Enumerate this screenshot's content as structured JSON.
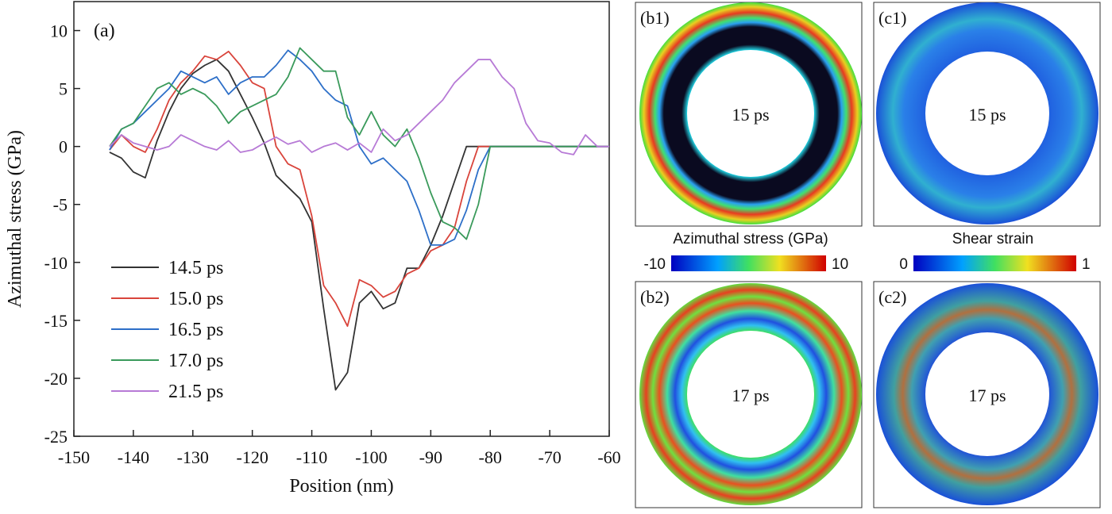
{
  "chart_data": {
    "type": "line",
    "annotation": "(a)",
    "x_label": "Position (nm)",
    "y_label": "Azimuthal stress (GPa)",
    "xlim": [
      -150,
      -60
    ],
    "xticks": [
      -150,
      -140,
      -130,
      -120,
      -110,
      -100,
      -90,
      -80,
      -70,
      -60
    ],
    "ylim": [
      -25,
      12.5
    ],
    "yticks": [
      -25,
      -20,
      -15,
      -10,
      -5,
      0,
      5,
      10
    ],
    "x": [
      -144,
      -142,
      -140,
      -138,
      -136,
      -134,
      -132,
      -130,
      -128,
      -126,
      -124,
      -122,
      -120,
      -118,
      -116,
      -114,
      -112,
      -110,
      -108,
      -106,
      -104,
      -102,
      -100,
      -98,
      -96,
      -94,
      -92,
      -90,
      -88,
      -86,
      -84,
      -82,
      -80,
      -78,
      -76,
      -74,
      -72,
      -70,
      -68,
      -66,
      -64,
      -62,
      -60
    ],
    "series": [
      {
        "name": "14.5 ps",
        "color": "#333333",
        "values": [
          -0.5,
          -1,
          -2.2,
          -2.7,
          0.5,
          3,
          5,
          6.3,
          7,
          7.5,
          6.5,
          4.5,
          2.5,
          0.3,
          -2.5,
          -3.5,
          -4.5,
          -6.5,
          -14,
          -21,
          -19.5,
          -13.5,
          -12.5,
          -14,
          -13.5,
          -10.5,
          -10.5,
          -8.5,
          -6,
          -3,
          0,
          0,
          0,
          0,
          0,
          0,
          0,
          0,
          0,
          0,
          0,
          0,
          0
        ]
      },
      {
        "name": "15.0 ps",
        "color": "#d9443b",
        "values": [
          -0.3,
          1,
          0,
          -0.5,
          1.5,
          4,
          5.5,
          6.5,
          7.8,
          7.5,
          8.2,
          7,
          5.5,
          5,
          0,
          -1.5,
          -2,
          -6,
          -12,
          -13.5,
          -15.5,
          -11.5,
          -12,
          -13,
          -12.5,
          -11,
          -10.5,
          -9,
          -8.5,
          -7,
          -3,
          0,
          0,
          0,
          0,
          0,
          0,
          0,
          0,
          0,
          0,
          0,
          0
        ]
      },
      {
        "name": "16.5 ps",
        "color": "#2d6fc8",
        "values": [
          -0.3,
          1.5,
          2,
          3,
          4,
          5,
          6.5,
          6,
          5.5,
          6,
          4.5,
          5.5,
          6,
          6,
          7,
          8.3,
          7.5,
          6.5,
          5,
          4,
          3.5,
          0,
          -1.5,
          -1,
          -2,
          -3,
          -5.5,
          -8.5,
          -8.5,
          -8,
          -5.5,
          -2,
          0,
          0,
          0,
          0,
          0,
          0,
          0,
          0,
          0,
          0,
          0
        ]
      },
      {
        "name": "17.0 ps",
        "color": "#3a9a5b",
        "values": [
          0,
          1.5,
          2,
          3.5,
          5,
          5.5,
          4.5,
          5,
          4.5,
          3.5,
          2,
          3,
          3.5,
          4,
          4.5,
          6,
          8.5,
          7.5,
          6.5,
          6.5,
          2.5,
          1,
          3,
          1,
          0,
          1.5,
          -1,
          -4,
          -6.5,
          -7,
          -8,
          -5,
          0,
          0,
          0,
          0,
          0,
          0,
          0,
          0,
          0,
          0,
          0
        ]
      },
      {
        "name": "21.5 ps",
        "color": "#b77ad6",
        "values": [
          0,
          1,
          0.3,
          0,
          -0.3,
          0,
          1,
          0.5,
          0,
          -0.3,
          0.5,
          -0.5,
          -0.3,
          0.3,
          0.8,
          0.2,
          0.5,
          -0.5,
          0,
          0.3,
          -0.3,
          0.3,
          -0.5,
          1.5,
          0.5,
          1,
          2,
          3,
          4,
          5.5,
          6.5,
          7.5,
          7.5,
          6,
          5,
          2,
          0.5,
          0.3,
          -0.5,
          -0.7,
          1,
          0,
          0
        ]
      }
    ]
  },
  "panels": [
    {
      "label": "(b1)",
      "time": "15 ps"
    },
    {
      "label": "(c1)",
      "time": "15 ps"
    },
    {
      "label": "(b2)",
      "time": "17 ps"
    },
    {
      "label": "(c2)",
      "time": "17 ps"
    }
  ],
  "colorbars": [
    {
      "title": "Azimuthal stress (GPa)",
      "min": -10,
      "max": 10
    },
    {
      "title": "Shear strain",
      "min": 0,
      "max": 1
    }
  ]
}
